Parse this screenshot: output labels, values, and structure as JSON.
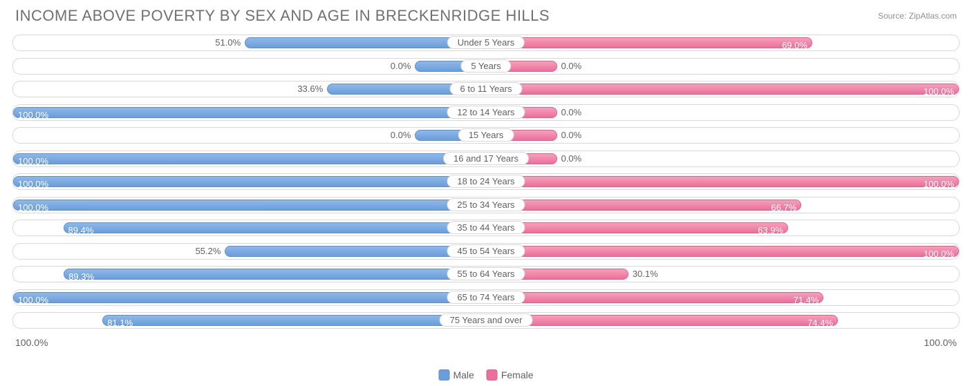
{
  "header": {
    "title": "INCOME ABOVE POVERTY BY SEX AND AGE IN BRECKENRIDGE HILLS",
    "source": "Source: ZipAtlas.com"
  },
  "chart": {
    "type": "diverging-bar",
    "axis_min_label": "100.0%",
    "axis_max_label": "100.0%",
    "male_color": "#6a9edb",
    "male_border": "#5a8fd0",
    "female_color": "#ec6f99",
    "female_border": "#e45e8c",
    "row_border": "#d8d8d8",
    "background": "#ffffff",
    "label_font_size": 13,
    "min_bar_pct": 15,
    "rows": [
      {
        "category": "Under 5 Years",
        "male": 51.0,
        "female": 69.0
      },
      {
        "category": "5 Years",
        "male": 0.0,
        "female": 0.0
      },
      {
        "category": "6 to 11 Years",
        "male": 33.6,
        "female": 100.0
      },
      {
        "category": "12 to 14 Years",
        "male": 100.0,
        "female": 0.0
      },
      {
        "category": "15 Years",
        "male": 0.0,
        "female": 0.0
      },
      {
        "category": "16 and 17 Years",
        "male": 100.0,
        "female": 0.0
      },
      {
        "category": "18 to 24 Years",
        "male": 100.0,
        "female": 100.0
      },
      {
        "category": "25 to 34 Years",
        "male": 100.0,
        "female": 66.7
      },
      {
        "category": "35 to 44 Years",
        "male": 89.4,
        "female": 63.9
      },
      {
        "category": "45 to 54 Years",
        "male": 55.2,
        "female": 100.0
      },
      {
        "category": "55 to 64 Years",
        "male": 89.3,
        "female": 30.1
      },
      {
        "category": "65 to 74 Years",
        "male": 100.0,
        "female": 71.4
      },
      {
        "category": "75 Years and over",
        "male": 81.1,
        "female": 74.4
      }
    ],
    "legend": {
      "male": "Male",
      "female": "Female"
    }
  }
}
